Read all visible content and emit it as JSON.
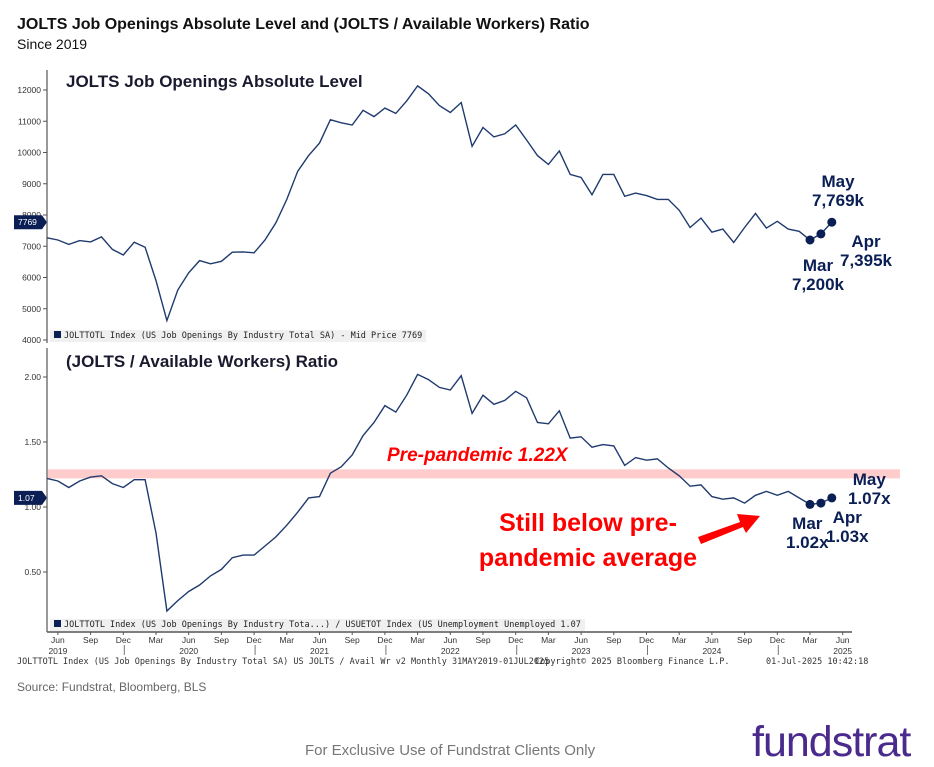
{
  "header": {
    "title": "JOLTS Job Openings Absolute Level and (JOLTS / Available Workers) Ratio",
    "subtitle": "Since 2019"
  },
  "chart_data": [
    {
      "type": "line",
      "title": "JOLTS Job Openings Absolute Level",
      "ylim": [
        4000,
        12000
      ],
      "yticks": [
        "4000",
        "5000",
        "6000",
        "7000",
        "8000",
        "9000",
        "10000",
        "11000",
        "12000"
      ],
      "legend": "JOLTTOTL Index (US Job Openings By Industry Total SA) - Mid Price 7769",
      "last_value_tag": "7769",
      "color": "#1f3a6e",
      "x_start": "May 2019",
      "x_end": "May 2025",
      "frequency": "Monthly",
      "values": [
        7270,
        7200,
        7060,
        7180,
        7140,
        7300,
        6900,
        6720,
        7130,
        6970,
        5900,
        4620,
        5600,
        6150,
        6540,
        6440,
        6520,
        6810,
        6820,
        6790,
        7200,
        7750,
        8500,
        9400,
        9900,
        10300,
        11050,
        10950,
        10880,
        11350,
        11150,
        11420,
        11250,
        11650,
        12130,
        11880,
        11500,
        11280,
        11600,
        10200,
        10800,
        10500,
        10600,
        10880,
        10400,
        9900,
        9620,
        10050,
        9300,
        9200,
        8650,
        9300,
        9300,
        8600,
        8700,
        8620,
        8500,
        8500,
        8150,
        7600,
        7900,
        7450,
        7550,
        7120,
        7600,
        8050,
        7580,
        7800,
        7550,
        7480,
        7200,
        7395,
        7769
      ],
      "annotations": [
        {
          "month": "Mar",
          "value": "7,200k"
        },
        {
          "month": "Apr",
          "value": "7,395k"
        },
        {
          "month": "May",
          "value": "7,769k"
        }
      ]
    },
    {
      "type": "line",
      "title": "(JOLTS / Available Workers) Ratio",
      "ylim": [
        0.2,
        2.2
      ],
      "yticks": [
        "0.50",
        "1.00",
        "1.50",
        "2.00"
      ],
      "legend": "JOLTTOTL Index (US Job Openings By Industry Tota...) / USUETOT Index (US Unemployment Unemployed 1.07",
      "last_value_tag": "1.07",
      "color": "#1f3a6e",
      "values": [
        1.22,
        1.2,
        1.15,
        1.2,
        1.23,
        1.24,
        1.18,
        1.15,
        1.21,
        1.21,
        0.8,
        0.2,
        0.28,
        0.35,
        0.4,
        0.47,
        0.52,
        0.61,
        0.63,
        0.63,
        0.7,
        0.77,
        0.86,
        0.96,
        1.07,
        1.08,
        1.26,
        1.31,
        1.4,
        1.55,
        1.65,
        1.78,
        1.73,
        1.86,
        2.02,
        1.98,
        1.92,
        1.9,
        2.01,
        1.72,
        1.86,
        1.79,
        1.82,
        1.89,
        1.84,
        1.65,
        1.64,
        1.74,
        1.53,
        1.54,
        1.46,
        1.48,
        1.47,
        1.32,
        1.38,
        1.36,
        1.37,
        1.3,
        1.24,
        1.16,
        1.17,
        1.08,
        1.06,
        1.07,
        1.03,
        1.09,
        1.12,
        1.09,
        1.12,
        1.07,
        1.02,
        1.03,
        1.07
      ],
      "band": {
        "label": "Pre-pandemic 1.22X",
        "from": 1.22,
        "to": 1.29,
        "color": "#ffcccc"
      },
      "callout": "Still below pre-pandemic average",
      "annotations": [
        {
          "month": "Mar",
          "value": "1.02x"
        },
        {
          "month": "Apr",
          "value": "1.03x"
        },
        {
          "month": "May",
          "value": "1.07x"
        }
      ]
    }
  ],
  "xaxis": {
    "months": [
      "Jun",
      "Sep",
      "Dec",
      "Mar",
      "Jun",
      "Sep",
      "Dec",
      "Mar",
      "Jun",
      "Sep",
      "Dec",
      "Mar",
      "Jun",
      "Sep",
      "Dec",
      "Mar",
      "Jun",
      "Sep",
      "Dec",
      "Mar",
      "Jun",
      "Sep",
      "Dec",
      "Mar",
      "Jun"
    ],
    "years": [
      "2019",
      "2020",
      "2021",
      "2022",
      "2023",
      "2024",
      "2025"
    ]
  },
  "footer": {
    "bbg_left": "JOLTTOTL Index (US Job Openings By Industry Total SA) US JOLTS / Avail Wr v2  Monthly 31MAY2019-01JUL2025",
    "bbg_mid": "Copyright© 2025 Bloomberg Finance L.P.",
    "bbg_right": "01-Jul-2025 10:42:18",
    "source": "Source: Fundstrat, Bloomberg, BLS",
    "disclaimer": "For Exclusive Use of Fundstrat Clients Only",
    "logo": "fundstrat",
    "logo_color": "#4a2a8c"
  }
}
